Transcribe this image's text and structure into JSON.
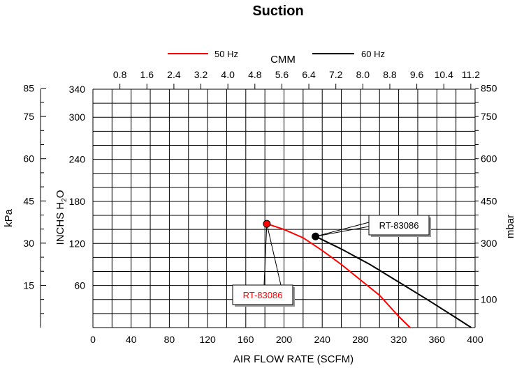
{
  "chart_data": {
    "type": "line",
    "title": "Suction",
    "xlabel": "AIR FLOW RATE (SCFM)",
    "x_top_label": "CMM",
    "ylabel_left_outer": "kPa",
    "ylabel_left_inner": "INCHS  H",
    "ylabel_left_inner_sub": "2",
    "ylabel_left_inner_end": "O",
    "ylabel_right": "mbar",
    "xlim": [
      0,
      400
    ],
    "ylim": [
      0,
      340
    ],
    "x_ticks": [
      "0",
      "40",
      "80",
      "120",
      "160",
      "200",
      "240",
      "280",
      "320",
      "360",
      "400"
    ],
    "x_top_ticks": [
      "0.8",
      "1.6",
      "2.4",
      "3.2",
      "4.0",
      "4.8",
      "5.6",
      "6.4",
      "7.2",
      "8.0",
      "8.8",
      "9.6",
      "10.4",
      "11.2"
    ],
    "y_inches_ticks": [
      "60",
      "120",
      "180",
      "240",
      "300",
      "340"
    ],
    "y_kpa_ticks": [
      "15",
      "30",
      "45",
      "60",
      "75",
      "85"
    ],
    "y_mbar_ticks": [
      "100",
      "300",
      "450",
      "600",
      "750",
      "850"
    ],
    "grid": true,
    "legend_position": "top",
    "series": [
      {
        "name": "50 Hz",
        "color": "#ff0000",
        "points": [
          [
            182,
            148
          ],
          [
            200,
            140
          ],
          [
            220,
            128
          ],
          [
            240,
            110
          ],
          [
            260,
            90
          ],
          [
            280,
            68
          ],
          [
            300,
            46
          ],
          [
            320,
            16
          ],
          [
            332,
            0
          ]
        ],
        "marker": [
          182,
          148
        ],
        "callout": "RT-83086"
      },
      {
        "name": "60 Hz",
        "color": "#000000",
        "points": [
          [
            233,
            130
          ],
          [
            260,
            112
          ],
          [
            290,
            90
          ],
          [
            320,
            65
          ],
          [
            350,
            40
          ],
          [
            380,
            14
          ],
          [
            396,
            0
          ]
        ],
        "marker": [
          233,
          130
        ],
        "callout": "RT-83086"
      }
    ]
  }
}
